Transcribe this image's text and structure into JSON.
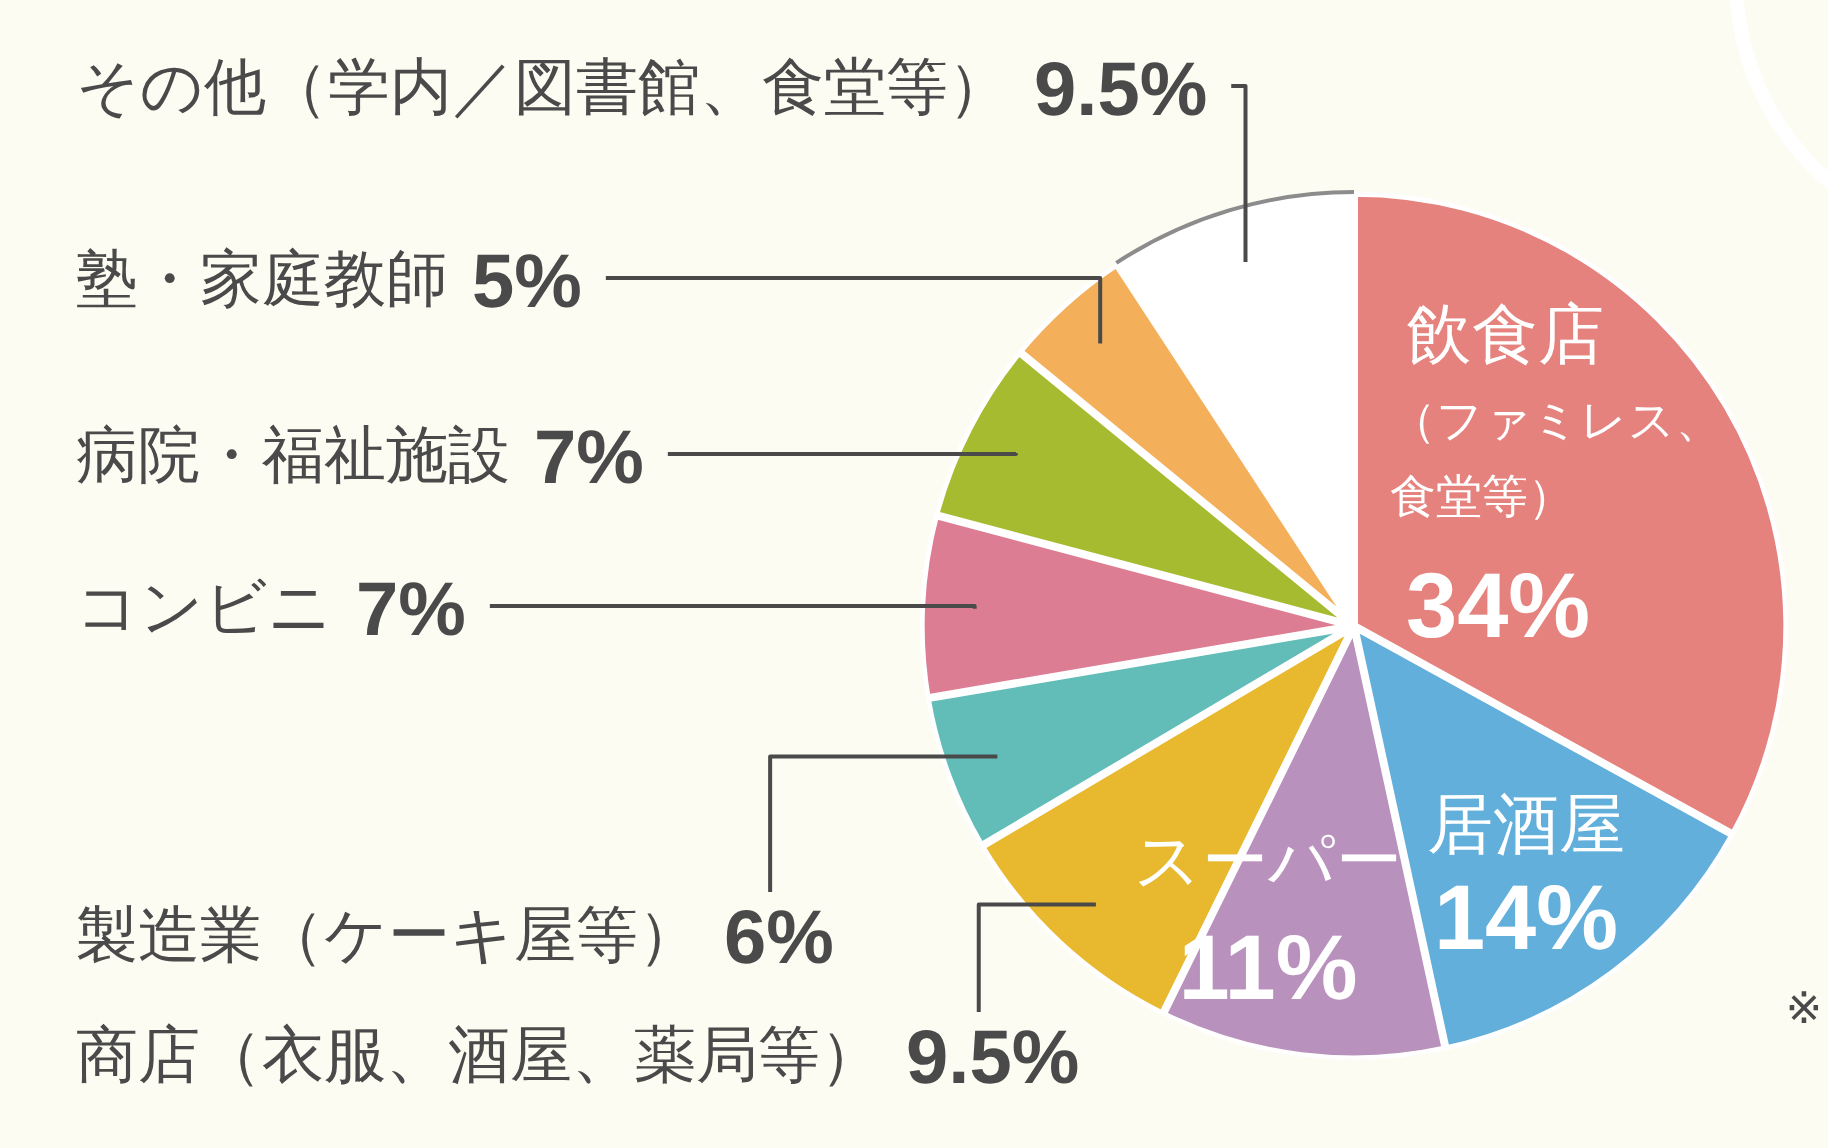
{
  "chart_data": {
    "type": "pie",
    "categories": [
      "飲食店（ファミレス、食堂等）",
      "居酒屋",
      "スーパー",
      "商店（衣服、酒屋、薬局等）",
      "製造業（ケーキ屋等）",
      "コンビニ",
      "病院・福祉施設",
      "塾・家庭教師",
      "その他（学内／図書館、食堂等）"
    ],
    "values": [
      34,
      14,
      11,
      9.5,
      6,
      7,
      7,
      5,
      9.5
    ],
    "colors": [
      "#e5827d",
      "#62afdc",
      "#b991bd",
      "#e8b82e",
      "#62bdb9",
      "#dd7d93",
      "#a7bb30",
      "#f4af5a",
      "#ffffff"
    ],
    "value_labels": [
      "34%",
      "14%",
      "11%",
      "9.5%",
      "6%",
      "7%",
      "7%",
      "5%",
      "9.5%"
    ],
    "annotations": [
      "※"
    ],
    "legend": false
  }
}
